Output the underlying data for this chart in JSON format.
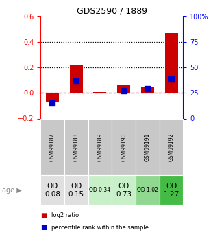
{
  "title": "GDS2590 / 1889",
  "samples": [
    "GSM99187",
    "GSM99188",
    "GSM99189",
    "GSM99190",
    "GSM99191",
    "GSM99192"
  ],
  "log2_ratio": [
    -0.07,
    0.22,
    0.01,
    0.06,
    0.05,
    0.47
  ],
  "percentile_rank_left": [
    0.15,
    0.37,
    null,
    0.27,
    0.29,
    0.39
  ],
  "ylim_left": [
    -0.2,
    0.6
  ],
  "yticks_left": [
    -0.2,
    0.0,
    0.2,
    0.4,
    0.6
  ],
  "yticks_right": [
    0,
    25,
    50,
    75,
    100
  ],
  "ytick_labels_right": [
    "0",
    "25",
    "50",
    "75",
    "100%"
  ],
  "bar_color": "#cc0000",
  "dot_color": "#0000cc",
  "zero_line_color": "#cc0000",
  "age_labels": [
    "OD\n0.08",
    "OD\n0.15",
    "OD 0.34",
    "OD\n0.73",
    "OD 1.02",
    "OD\n1.27"
  ],
  "age_bg_colors": [
    "#e0e0e0",
    "#e0e0e0",
    "#c8f0c8",
    "#c8f0c8",
    "#90d890",
    "#44bb44"
  ],
  "age_fontsize_large": [
    true,
    true,
    false,
    true,
    false,
    true
  ],
  "sample_bg_color": "#c8c8c8",
  "bar_width": 0.55,
  "dot_size": 35
}
